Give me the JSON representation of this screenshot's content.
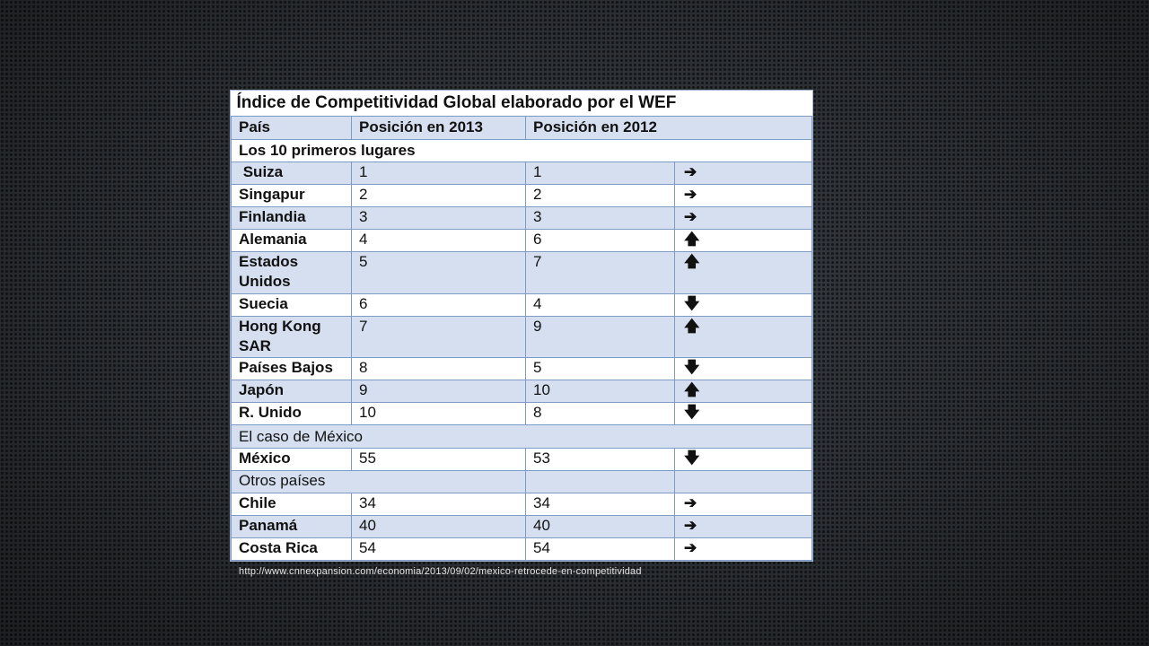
{
  "table": {
    "title": "Índice de Competitividad Global elaborado por el WEF",
    "headers": [
      "País",
      "Posición en 2013",
      "Posición en 2012"
    ],
    "section_top10": "Los 10 primeros lugares",
    "top10": [
      {
        "country": " Suiza",
        "y2013": "1",
        "y2012": "1",
        "trend": "➔",
        "trend_icon": "arrow-right-icon"
      },
      {
        "country": "Singapur",
        "y2013": "2",
        "y2012": "2",
        "trend": "➔",
        "trend_icon": "arrow-right-icon"
      },
      {
        "country": "Finlandia",
        "y2013": "3",
        "y2012": "3",
        "trend": "➔",
        "trend_icon": "arrow-right-icon"
      },
      {
        "country": "Alemania",
        "y2013": "4",
        "y2012": "6",
        "trend": "🡅",
        "trend_icon": "arrow-up-icon"
      },
      {
        "country": "Estados Unidos",
        "y2013": "5",
        "y2012": "7",
        "trend": "🡅",
        "trend_icon": "arrow-up-icon"
      },
      {
        "country": "Suecia",
        "y2013": "6",
        "y2012": "4",
        "trend": "🡇",
        "trend_icon": "arrow-down-icon"
      },
      {
        "country": "Hong Kong SAR",
        "y2013": "7",
        "y2012": "9",
        "trend": "🡅",
        "trend_icon": "arrow-up-icon"
      },
      {
        "country": "Países Bajos",
        "y2013": "8",
        "y2012": "5",
        "trend": "🡇",
        "trend_icon": "arrow-down-icon"
      },
      {
        "country": "Japón",
        "y2013": "9",
        "y2012": "10",
        "trend": "🡅",
        "trend_icon": "arrow-up-icon"
      },
      {
        "country": "R. Unido",
        "y2013": "10",
        "y2012": "8",
        "trend": "🡇",
        "trend_icon": "arrow-down-icon"
      }
    ],
    "section_mexico": "El caso de México",
    "mexico": {
      "country": "México",
      "y2013": "55",
      "y2012": "53",
      "trend": "🡇",
      "trend_icon": "arrow-down-icon"
    },
    "section_others": "Otros países",
    "others": [
      {
        "country": "Chile",
        "y2013": "34",
        "y2012": "34",
        "trend": "➔",
        "trend_icon": "arrow-right-icon"
      },
      {
        "country": "Panamá",
        "y2013": "40",
        "y2012": "40",
        "trend": "➔",
        "trend_icon": "arrow-right-icon"
      },
      {
        "country": "Costa Rica",
        "y2013": "54",
        "y2012": "54",
        "trend": "➔",
        "trend_icon": "arrow-right-icon"
      }
    ]
  },
  "source_url": "http://www.cnnexpansion.com/economia/2013/09/02/mexico-retrocede-en-competitividad"
}
